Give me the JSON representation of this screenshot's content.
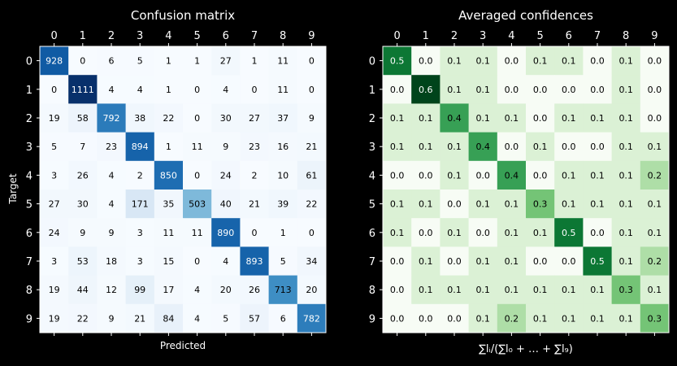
{
  "chart_data": [
    {
      "type": "heatmap",
      "title": "Confusion matrix",
      "xlabel": "Predicted",
      "ylabel": "Target",
      "x_ticks": [
        "0",
        "1",
        "2",
        "3",
        "4",
        "5",
        "6",
        "7",
        "8",
        "9"
      ],
      "y_ticks": [
        "0",
        "1",
        "2",
        "3",
        "4",
        "5",
        "6",
        "7",
        "8",
        "9"
      ],
      "colormap": "Blues",
      "color_range": [
        0,
        1111
      ],
      "values": [
        [
          928,
          0,
          6,
          5,
          1,
          1,
          27,
          1,
          11,
          0
        ],
        [
          0,
          1111,
          4,
          4,
          1,
          0,
          4,
          0,
          11,
          0
        ],
        [
          19,
          58,
          792,
          38,
          22,
          0,
          30,
          27,
          37,
          9
        ],
        [
          5,
          7,
          23,
          894,
          1,
          11,
          9,
          23,
          16,
          21
        ],
        [
          3,
          26,
          4,
          2,
          850,
          0,
          24,
          2,
          10,
          61
        ],
        [
          27,
          30,
          4,
          171,
          35,
          503,
          40,
          21,
          39,
          22
        ],
        [
          24,
          9,
          9,
          3,
          11,
          11,
          890,
          0,
          1,
          0
        ],
        [
          3,
          53,
          18,
          3,
          15,
          0,
          4,
          893,
          5,
          34
        ],
        [
          19,
          44,
          12,
          99,
          17,
          4,
          20,
          26,
          713,
          20
        ],
        [
          19,
          22,
          9,
          21,
          84,
          4,
          5,
          57,
          6,
          782
        ]
      ]
    },
    {
      "type": "heatmap",
      "title": "Averaged confidences",
      "xlabel": "∑lᵢ/(∑l₀ + … + ∑l₉)",
      "ylabel": "",
      "x_ticks": [
        "0",
        "1",
        "2",
        "3",
        "4",
        "5",
        "6",
        "7",
        "8",
        "9"
      ],
      "y_ticks": [
        "0",
        "1",
        "2",
        "3",
        "4",
        "5",
        "6",
        "7",
        "8",
        "9"
      ],
      "colormap": "Greens",
      "color_range": [
        0,
        0.6
      ],
      "values": [
        [
          0.5,
          0.0,
          0.1,
          0.1,
          0.0,
          0.1,
          0.1,
          0.0,
          0.1,
          0.0
        ],
        [
          0.0,
          0.6,
          0.1,
          0.1,
          0.0,
          0.0,
          0.0,
          0.0,
          0.1,
          0.0
        ],
        [
          0.1,
          0.1,
          0.4,
          0.1,
          0.1,
          0.0,
          0.1,
          0.1,
          0.1,
          0.0
        ],
        [
          0.1,
          0.1,
          0.1,
          0.4,
          0.0,
          0.1,
          0.0,
          0.0,
          0.1,
          0.1
        ],
        [
          0.0,
          0.0,
          0.1,
          0.0,
          0.4,
          0.0,
          0.1,
          0.1,
          0.1,
          0.2
        ],
        [
          0.1,
          0.1,
          0.0,
          0.1,
          0.1,
          0.3,
          0.1,
          0.1,
          0.1,
          0.1
        ],
        [
          0.1,
          0.0,
          0.1,
          0.0,
          0.1,
          0.1,
          0.5,
          0.0,
          0.1,
          0.1
        ],
        [
          0.0,
          0.1,
          0.0,
          0.1,
          0.1,
          0.0,
          0.0,
          0.5,
          0.1,
          0.2
        ],
        [
          0.0,
          0.1,
          0.1,
          0.1,
          0.1,
          0.1,
          0.1,
          0.1,
          0.3,
          0.1
        ],
        [
          0.0,
          0.0,
          0.0,
          0.1,
          0.2,
          0.1,
          0.1,
          0.1,
          0.1,
          0.3
        ]
      ]
    }
  ]
}
